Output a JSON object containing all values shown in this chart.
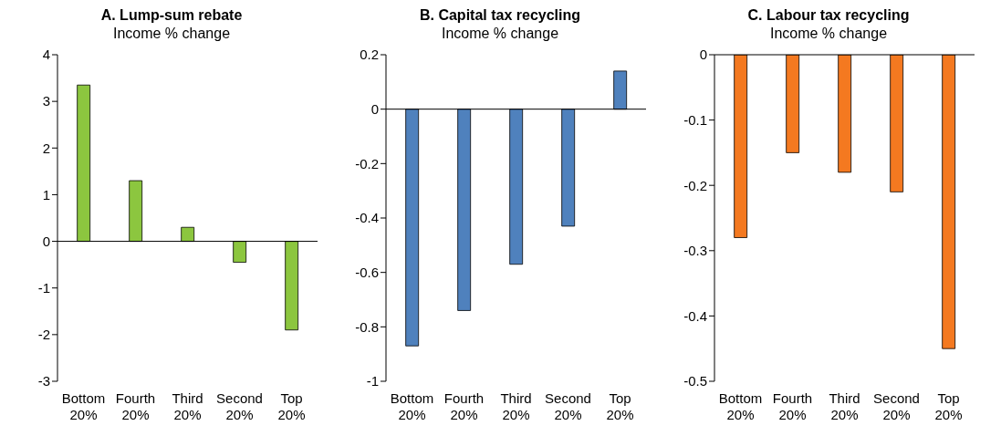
{
  "chart_data": [
    {
      "type": "bar",
      "title": "A. Lump-sum rebate",
      "subtitle": "Income % change",
      "categories": [
        "Bottom 20%",
        "Fourth 20%",
        "Third 20%",
        "Second 20%",
        "Top 20%"
      ],
      "values": [
        3.35,
        1.3,
        0.3,
        -0.45,
        -1.9
      ],
      "color": "#8cc63f",
      "ylim": [
        -3,
        4
      ],
      "yticks": [
        -3,
        -2,
        -1,
        0,
        1,
        2,
        3,
        4
      ]
    },
    {
      "type": "bar",
      "title": "B. Capital tax recycling",
      "subtitle": "Income % change",
      "categories": [
        "Bottom 20%",
        "Fourth 20%",
        "Third 20%",
        "Second 20%",
        "Top 20%"
      ],
      "values": [
        -0.87,
        -0.74,
        -0.57,
        -0.43,
        0.14
      ],
      "color": "#4f81bd",
      "ylim": [
        -1,
        0.2
      ],
      "yticks": [
        -1,
        -0.8,
        -0.6,
        -0.4,
        -0.2,
        0,
        0.2
      ]
    },
    {
      "type": "bar",
      "title": "C. Labour tax recycling",
      "subtitle": "Income % change",
      "categories": [
        "Bottom 20%",
        "Fourth 20%",
        "Third 20%",
        "Second 20%",
        "Top 20%"
      ],
      "values": [
        -0.28,
        -0.15,
        -0.18,
        -0.21,
        -0.45
      ],
      "color": "#f47920",
      "ylim": [
        -0.5,
        0
      ],
      "yticks": [
        -0.5,
        -0.4,
        -0.3,
        -0.2,
        -0.1,
        0
      ]
    }
  ]
}
